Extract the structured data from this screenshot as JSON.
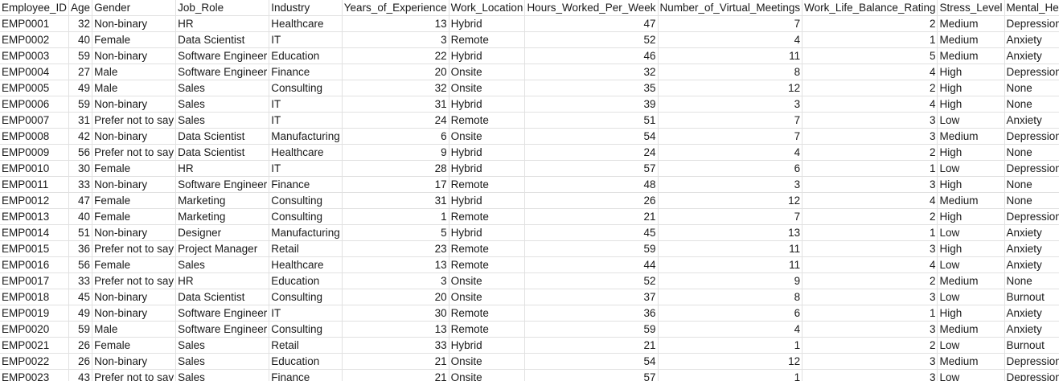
{
  "sheet": {
    "columns": [
      "Employee_ID",
      "Age",
      "Gender",
      "Job_Role",
      "Industry",
      "Years_of_Experience",
      "Work_Location",
      "Hours_Worked_Per_Week",
      "Number_of_Virtual_Meetings",
      "Work_Life_Balance_Rating",
      "Stress_Level",
      "Mental_Health_Condition"
    ],
    "rows": [
      [
        "EMP0001",
        "32",
        "Non-binary",
        "HR",
        "Healthcare",
        "13",
        "Hybrid",
        "47",
        "7",
        "2",
        "Medium",
        "Depression"
      ],
      [
        "EMP0002",
        "40",
        "Female",
        "Data Scientist",
        "IT",
        "3",
        "Remote",
        "52",
        "4",
        "1",
        "Medium",
        "Anxiety"
      ],
      [
        "EMP0003",
        "59",
        "Non-binary",
        "Software Engineer",
        "Education",
        "22",
        "Hybrid",
        "46",
        "11",
        "5",
        "Medium",
        "Anxiety"
      ],
      [
        "EMP0004",
        "27",
        "Male",
        "Software Engineer",
        "Finance",
        "20",
        "Onsite",
        "32",
        "8",
        "4",
        "High",
        "Depression"
      ],
      [
        "EMP0005",
        "49",
        "Male",
        "Sales",
        "Consulting",
        "32",
        "Onsite",
        "35",
        "12",
        "2",
        "High",
        "None"
      ],
      [
        "EMP0006",
        "59",
        "Non-binary",
        "Sales",
        "IT",
        "31",
        "Hybrid",
        "39",
        "3",
        "4",
        "High",
        "None"
      ],
      [
        "EMP0007",
        "31",
        "Prefer not to say",
        "Sales",
        "IT",
        "24",
        "Remote",
        "51",
        "7",
        "3",
        "Low",
        "Anxiety"
      ],
      [
        "EMP0008",
        "42",
        "Non-binary",
        "Data Scientist",
        "Manufacturing",
        "6",
        "Onsite",
        "54",
        "7",
        "3",
        "Medium",
        "Depression"
      ],
      [
        "EMP0009",
        "56",
        "Prefer not to say",
        "Data Scientist",
        "Healthcare",
        "9",
        "Hybrid",
        "24",
        "4",
        "2",
        "High",
        "None"
      ],
      [
        "EMP0010",
        "30",
        "Female",
        "HR",
        "IT",
        "28",
        "Hybrid",
        "57",
        "6",
        "1",
        "Low",
        "Depression"
      ],
      [
        "EMP0011",
        "33",
        "Non-binary",
        "Software Engineer",
        "Finance",
        "17",
        "Remote",
        "48",
        "3",
        "3",
        "High",
        "None"
      ],
      [
        "EMP0012",
        "47",
        "Female",
        "Marketing",
        "Consulting",
        "31",
        "Hybrid",
        "26",
        "12",
        "4",
        "Medium",
        "None"
      ],
      [
        "EMP0013",
        "40",
        "Female",
        "Marketing",
        "Consulting",
        "1",
        "Remote",
        "21",
        "7",
        "2",
        "High",
        "Depression"
      ],
      [
        "EMP0014",
        "51",
        "Non-binary",
        "Designer",
        "Manufacturing",
        "5",
        "Hybrid",
        "45",
        "13",
        "1",
        "Low",
        "Anxiety"
      ],
      [
        "EMP0015",
        "36",
        "Prefer not to say",
        "Project Manager",
        "Retail",
        "23",
        "Remote",
        "59",
        "11",
        "3",
        "High",
        "Anxiety"
      ],
      [
        "EMP0016",
        "56",
        "Female",
        "Sales",
        "Healthcare",
        "13",
        "Remote",
        "44",
        "11",
        "4",
        "Low",
        "Anxiety"
      ],
      [
        "EMP0017",
        "33",
        "Prefer not to say",
        "HR",
        "Education",
        "3",
        "Onsite",
        "52",
        "9",
        "2",
        "Medium",
        "None"
      ],
      [
        "EMP0018",
        "45",
        "Non-binary",
        "Data Scientist",
        "Consulting",
        "20",
        "Onsite",
        "37",
        "8",
        "3",
        "Low",
        "Burnout"
      ],
      [
        "EMP0019",
        "49",
        "Non-binary",
        "Software Engineer",
        "IT",
        "30",
        "Remote",
        "36",
        "6",
        "1",
        "High",
        "Anxiety"
      ],
      [
        "EMP0020",
        "59",
        "Male",
        "Software Engineer",
        "Consulting",
        "13",
        "Remote",
        "59",
        "4",
        "3",
        "Medium",
        "Anxiety"
      ],
      [
        "EMP0021",
        "26",
        "Female",
        "Sales",
        "Retail",
        "33",
        "Hybrid",
        "21",
        "1",
        "2",
        "Low",
        "Burnout"
      ],
      [
        "EMP0022",
        "26",
        "Non-binary",
        "Sales",
        "Education",
        "21",
        "Onsite",
        "54",
        "12",
        "3",
        "Medium",
        "Depression"
      ],
      [
        "EMP0023",
        "43",
        "Prefer not to say",
        "Sales",
        "Finance",
        "21",
        "Onsite",
        "57",
        "1",
        "3",
        "Low",
        "Depression"
      ]
    ]
  }
}
